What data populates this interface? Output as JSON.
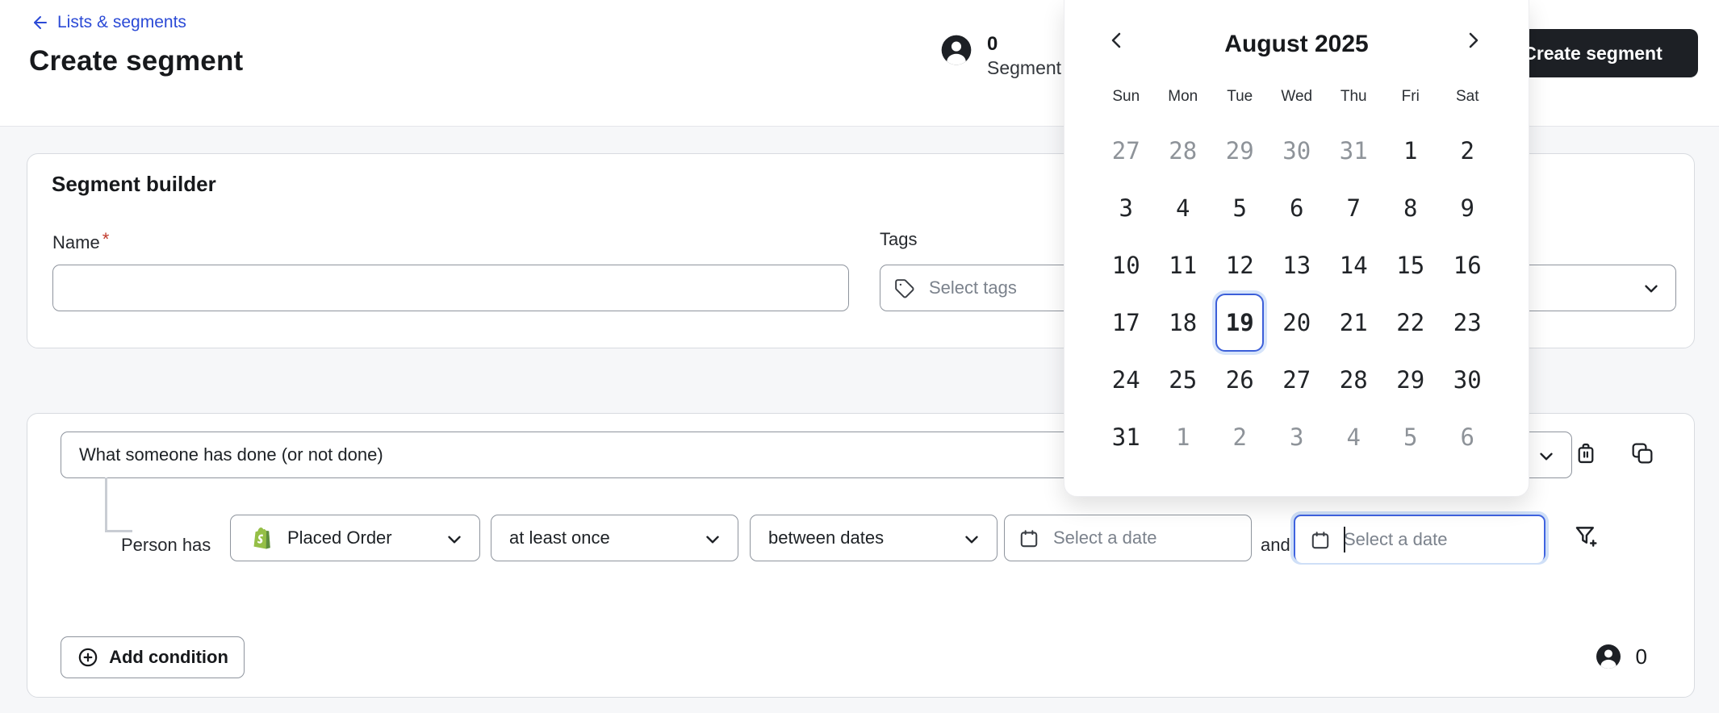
{
  "header": {
    "back_link": "Lists & segments",
    "title": "Create segment",
    "profile_count": "0",
    "profile_label": "Segment p",
    "create_button": "Create segment"
  },
  "builder": {
    "title": "Segment builder",
    "name_label": "Name",
    "required_mark": "*",
    "name_value": "",
    "tags_label": "Tags",
    "tags_placeholder": "Select tags"
  },
  "condition": {
    "type_value": "What someone has done (or not done)",
    "person_has_label": "Person has",
    "metric_value": "Placed Order",
    "frequency_value": "at least once",
    "timeframe_value": "between dates",
    "date_start_placeholder": "Select a date",
    "and_label": "and",
    "date_end_placeholder": "Select a date",
    "add_condition_label": "Add condition",
    "member_count": "0"
  },
  "calendar": {
    "title": "August 2025",
    "day_names": [
      "Sun",
      "Mon",
      "Tue",
      "Wed",
      "Thu",
      "Fri",
      "Sat"
    ],
    "selected_day": "19",
    "weeks": [
      [
        {
          "d": "27",
          "m": 1
        },
        {
          "d": "28",
          "m": 1
        },
        {
          "d": "29",
          "m": 1
        },
        {
          "d": "30",
          "m": 1
        },
        {
          "d": "31",
          "m": 1
        },
        {
          "d": "1"
        },
        {
          "d": "2"
        }
      ],
      [
        {
          "d": "3"
        },
        {
          "d": "4"
        },
        {
          "d": "5"
        },
        {
          "d": "6"
        },
        {
          "d": "7"
        },
        {
          "d": "8"
        },
        {
          "d": "9"
        }
      ],
      [
        {
          "d": "10"
        },
        {
          "d": "11"
        },
        {
          "d": "12"
        },
        {
          "d": "13"
        },
        {
          "d": "14"
        },
        {
          "d": "15"
        },
        {
          "d": "16"
        }
      ],
      [
        {
          "d": "17"
        },
        {
          "d": "18"
        },
        {
          "d": "19",
          "sel": 1
        },
        {
          "d": "20"
        },
        {
          "d": "21"
        },
        {
          "d": "22"
        },
        {
          "d": "23"
        }
      ],
      [
        {
          "d": "24"
        },
        {
          "d": "25"
        },
        {
          "d": "26"
        },
        {
          "d": "27"
        },
        {
          "d": "28"
        },
        {
          "d": "29"
        },
        {
          "d": "30"
        }
      ],
      [
        {
          "d": "31"
        },
        {
          "d": "1",
          "m": 1
        },
        {
          "d": "2",
          "m": 1
        },
        {
          "d": "3",
          "m": 1
        },
        {
          "d": "4",
          "m": 1
        },
        {
          "d": "5",
          "m": 1
        },
        {
          "d": "6",
          "m": 1
        }
      ]
    ]
  },
  "icons": {
    "back": "arrow-left-icon",
    "tags": "tag-icon",
    "date": "calendar-icon",
    "delete": "trash-icon",
    "duplicate": "copy-icon",
    "filter": "funnel-plus-icon",
    "add": "plus-circle-icon",
    "profile": "avatar-icon"
  },
  "colors": {
    "link_blue": "#2b4ad6",
    "focus_blue": "#3f63e0",
    "focus_ring": "#cfdff7",
    "selected_day_border": "#3c5fd9",
    "dark_button": "#1d2025",
    "required_red": "#c0392b",
    "shopify_green": "#95BF47",
    "shopify_green_dark": "#5E8E3E",
    "muted_text": "#8e9399",
    "page_bg": "#f6f7f9",
    "card_border": "#d8dbe0",
    "input_border": "#8e949d"
  }
}
